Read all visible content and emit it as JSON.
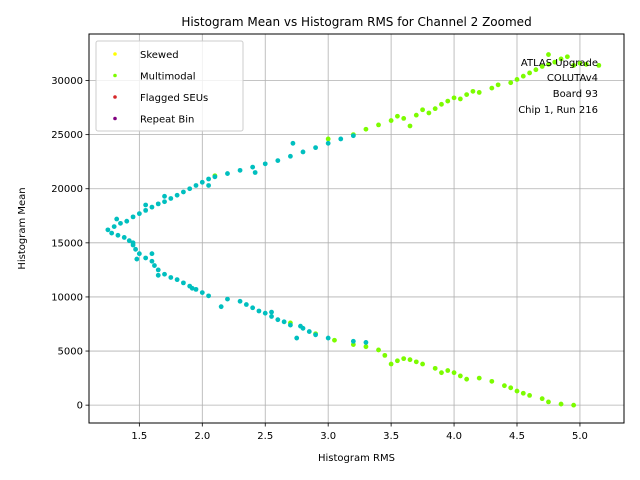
{
  "chart_data": {
    "type": "scatter",
    "title": "Histogram Mean vs Histogram RMS for Channel 2 Zoomed",
    "xlabel": "Histogram RMS",
    "ylabel": "Histogram Mean",
    "xlim": [
      1.1,
      5.35
    ],
    "ylim": [
      -1650,
      34300
    ],
    "xticks": [
      1.5,
      2.0,
      2.5,
      3.0,
      3.5,
      4.0,
      4.5,
      5.0
    ],
    "xtick_labels": [
      "1.5",
      "2.0",
      "2.5",
      "3.0",
      "3.5",
      "4.0",
      "4.5",
      "5.0"
    ],
    "yticks": [
      0,
      5000,
      10000,
      15000,
      20000,
      25000,
      30000
    ],
    "ytick_labels": [
      "0",
      "5000",
      "10000",
      "15000",
      "20000",
      "25000",
      "30000"
    ],
    "grid": true,
    "legend_position": "top-left",
    "annotation": [
      "ATLAS Upgrade",
      "COLUTAv4",
      "Board 93",
      "Chip 1, Run 216"
    ],
    "series": [
      {
        "name": "Skewed",
        "color": "#ffff00",
        "points": []
      },
      {
        "name": "Multimodal",
        "color": "#7cfc00",
        "points": [
          [
            4.95,
            0
          ],
          [
            4.85,
            100
          ],
          [
            4.75,
            300
          ],
          [
            4.7,
            600
          ],
          [
            4.6,
            900
          ],
          [
            4.55,
            1100
          ],
          [
            4.5,
            1300
          ],
          [
            4.45,
            1600
          ],
          [
            4.4,
            1800
          ],
          [
            4.3,
            2200
          ],
          [
            4.2,
            2500
          ],
          [
            4.1,
            2400
          ],
          [
            4.05,
            2700
          ],
          [
            4.0,
            3000
          ],
          [
            3.95,
            3200
          ],
          [
            3.9,
            3000
          ],
          [
            3.85,
            3400
          ],
          [
            3.75,
            3800
          ],
          [
            3.7,
            4000
          ],
          [
            3.65,
            4200
          ],
          [
            3.6,
            4300
          ],
          [
            3.55,
            4100
          ],
          [
            3.5,
            3800
          ],
          [
            3.45,
            4600
          ],
          [
            3.4,
            5100
          ],
          [
            3.3,
            5400
          ],
          [
            3.2,
            5600
          ],
          [
            3.05,
            6000
          ],
          [
            2.9,
            6600
          ],
          [
            2.7,
            7600
          ],
          [
            2.1,
            21200
          ],
          [
            3.0,
            24600
          ],
          [
            3.2,
            25000
          ],
          [
            3.3,
            25500
          ],
          [
            3.4,
            25900
          ],
          [
            3.5,
            26300
          ],
          [
            3.55,
            26700
          ],
          [
            3.6,
            26500
          ],
          [
            3.65,
            25800
          ],
          [
            3.7,
            26800
          ],
          [
            3.75,
            27300
          ],
          [
            3.8,
            27000
          ],
          [
            3.85,
            27400
          ],
          [
            3.9,
            27800
          ],
          [
            3.95,
            28100
          ],
          [
            4.0,
            28400
          ],
          [
            4.05,
            28300
          ],
          [
            4.1,
            28700
          ],
          [
            4.15,
            29000
          ],
          [
            4.2,
            28900
          ],
          [
            4.3,
            29300
          ],
          [
            4.35,
            29600
          ],
          [
            4.45,
            29800
          ],
          [
            4.5,
            30100
          ],
          [
            4.55,
            30400
          ],
          [
            4.6,
            30700
          ],
          [
            4.65,
            31000
          ],
          [
            4.7,
            31300
          ],
          [
            4.75,
            31500
          ],
          [
            4.8,
            31700
          ],
          [
            4.85,
            32000
          ],
          [
            4.9,
            32200
          ],
          [
            4.95,
            31400
          ],
          [
            5.0,
            31600
          ],
          [
            5.05,
            31500
          ],
          [
            5.15,
            31400
          ],
          [
            4.75,
            32400
          ]
        ]
      },
      {
        "name": "Flagged SEUs",
        "color": "#d62728",
        "points": []
      },
      {
        "name": "Repeat Bin",
        "color": "#800080",
        "points": []
      },
      {
        "name": "",
        "color": "#00bfbf",
        "points": [
          [
            3.3,
            5800
          ],
          [
            3.2,
            5900
          ],
          [
            3.0,
            6200
          ],
          [
            2.9,
            6500
          ],
          [
            2.85,
            6800
          ],
          [
            2.8,
            7100
          ],
          [
            2.75,
            6200
          ],
          [
            2.7,
            7400
          ],
          [
            2.65,
            7700
          ],
          [
            2.6,
            7900
          ],
          [
            2.55,
            8200
          ],
          [
            2.5,
            8500
          ],
          [
            2.45,
            8700
          ],
          [
            2.4,
            9000
          ],
          [
            2.35,
            9300
          ],
          [
            2.3,
            9600
          ],
          [
            2.2,
            9800
          ],
          [
            2.15,
            9100
          ],
          [
            2.05,
            10100
          ],
          [
            2.0,
            10400
          ],
          [
            1.95,
            10700
          ],
          [
            1.9,
            11000
          ],
          [
            1.85,
            11300
          ],
          [
            1.8,
            11600
          ],
          [
            1.75,
            11800
          ],
          [
            1.7,
            12100
          ],
          [
            1.65,
            12500
          ],
          [
            1.62,
            12900
          ],
          [
            1.6,
            13300
          ],
          [
            1.55,
            13600
          ],
          [
            1.5,
            14000
          ],
          [
            1.47,
            14400
          ],
          [
            1.45,
            14800
          ],
          [
            1.42,
            15200
          ],
          [
            1.38,
            15500
          ],
          [
            1.33,
            15700
          ],
          [
            1.28,
            15900
          ],
          [
            1.25,
            16200
          ],
          [
            1.3,
            16500
          ],
          [
            1.35,
            16800
          ],
          [
            1.4,
            17000
          ],
          [
            1.45,
            17400
          ],
          [
            1.5,
            17700
          ],
          [
            1.55,
            18000
          ],
          [
            1.6,
            18300
          ],
          [
            1.65,
            18600
          ],
          [
            1.7,
            18800
          ],
          [
            1.75,
            19100
          ],
          [
            1.8,
            19400
          ],
          [
            1.85,
            19700
          ],
          [
            1.9,
            20000
          ],
          [
            1.95,
            20300
          ],
          [
            2.0,
            20600
          ],
          [
            2.05,
            20900
          ],
          [
            2.1,
            21100
          ],
          [
            2.2,
            21400
          ],
          [
            2.3,
            21700
          ],
          [
            2.4,
            22000
          ],
          [
            2.5,
            22300
          ],
          [
            2.6,
            22600
          ],
          [
            2.7,
            23000
          ],
          [
            2.8,
            23400
          ],
          [
            2.9,
            23800
          ],
          [
            3.0,
            24200
          ],
          [
            3.1,
            24600
          ],
          [
            3.2,
            24900
          ],
          [
            2.42,
            21500
          ],
          [
            2.72,
            24200
          ],
          [
            1.6,
            14000
          ],
          [
            1.65,
            12000
          ],
          [
            1.48,
            13500
          ],
          [
            1.92,
            10800
          ],
          [
            2.55,
            8600
          ],
          [
            2.78,
            7300
          ],
          [
            1.32,
            17200
          ],
          [
            1.45,
            15000
          ],
          [
            1.55,
            18500
          ],
          [
            1.7,
            19300
          ],
          [
            2.05,
            20300
          ]
        ]
      }
    ]
  }
}
